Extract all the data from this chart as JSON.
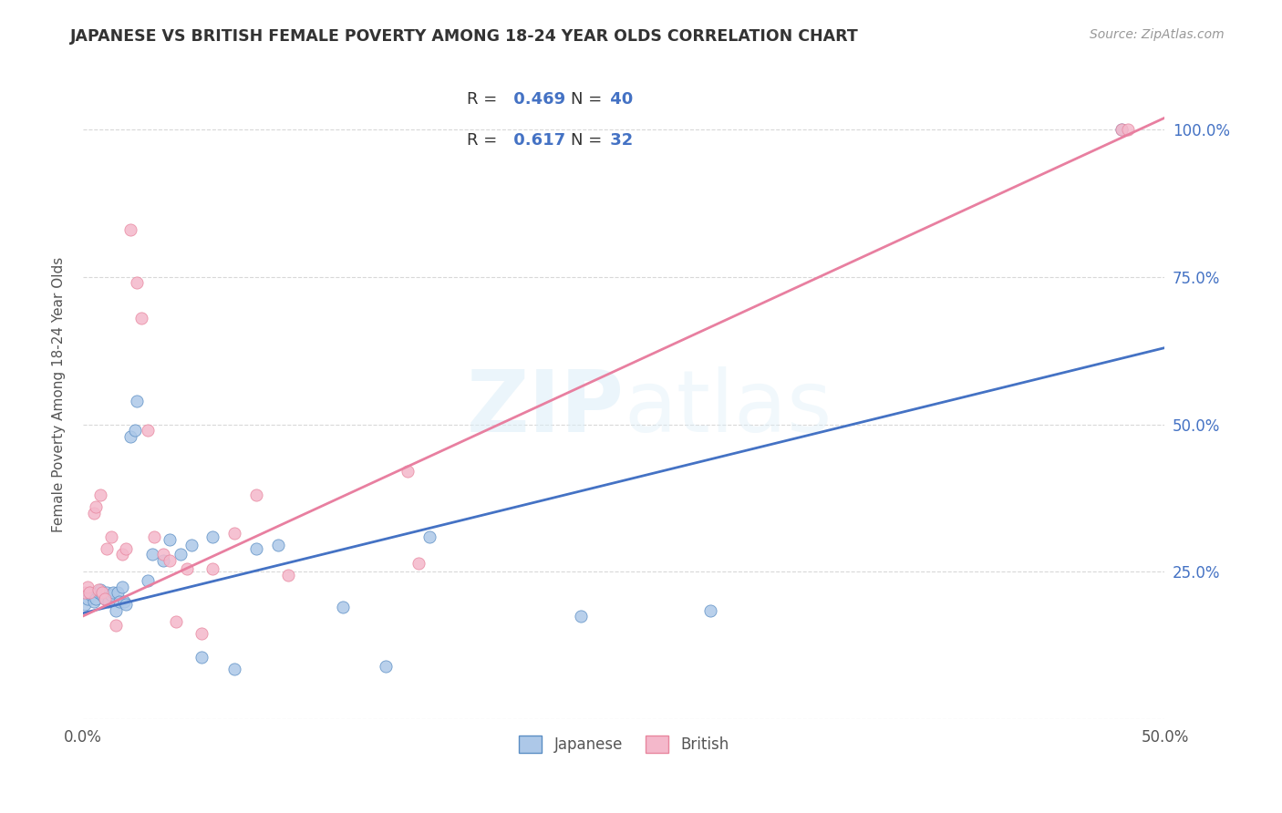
{
  "title": "JAPANESE VS BRITISH FEMALE POVERTY AMONG 18-24 YEAR OLDS CORRELATION CHART",
  "source": "Source: ZipAtlas.com",
  "ylabel": "Female Poverty Among 18-24 Year Olds",
  "xlim": [
    0.0,
    0.5
  ],
  "ylim": [
    0.0,
    1.1
  ],
  "xticks": [
    0.0,
    0.1,
    0.2,
    0.3,
    0.4,
    0.5
  ],
  "yticks": [
    0.0,
    0.25,
    0.5,
    0.75,
    1.0
  ],
  "ytick_labels_right": [
    "",
    "25.0%",
    "50.0%",
    "75.0%",
    "100.0%"
  ],
  "xtick_labels": [
    "0.0%",
    "",
    "",
    "",
    "",
    "50.0%"
  ],
  "background_color": "#ffffff",
  "grid_color": "#d8d8d8",
  "japanese_fill_color": "#adc8e8",
  "british_fill_color": "#f4b8cb",
  "japanese_edge_color": "#5b8ec4",
  "british_edge_color": "#e8869e",
  "japanese_line_color": "#4472c4",
  "british_line_color": "#e87fa0",
  "accent_color": "#4472c4",
  "legend_R_japanese": "0.469",
  "legend_N_japanese": "40",
  "legend_R_british": "0.617",
  "legend_N_british": "32",
  "japanese_x": [
    0.001,
    0.002,
    0.003,
    0.004,
    0.005,
    0.006,
    0.007,
    0.008,
    0.009,
    0.01,
    0.011,
    0.012,
    0.013,
    0.014,
    0.015,
    0.016,
    0.017,
    0.018,
    0.019,
    0.02,
    0.022,
    0.024,
    0.025,
    0.03,
    0.032,
    0.037,
    0.04,
    0.045,
    0.05,
    0.055,
    0.06,
    0.07,
    0.08,
    0.09,
    0.12,
    0.14,
    0.16,
    0.23,
    0.29,
    0.48
  ],
  "japanese_y": [
    0.195,
    0.205,
    0.215,
    0.21,
    0.2,
    0.205,
    0.215,
    0.22,
    0.21,
    0.205,
    0.215,
    0.2,
    0.21,
    0.215,
    0.185,
    0.215,
    0.2,
    0.225,
    0.2,
    0.195,
    0.48,
    0.49,
    0.54,
    0.235,
    0.28,
    0.27,
    0.305,
    0.28,
    0.295,
    0.105,
    0.31,
    0.085,
    0.29,
    0.295,
    0.19,
    0.09,
    0.31,
    0.175,
    0.185,
    1.0
  ],
  "british_x": [
    0.001,
    0.002,
    0.003,
    0.005,
    0.006,
    0.007,
    0.008,
    0.009,
    0.01,
    0.011,
    0.013,
    0.015,
    0.018,
    0.02,
    0.022,
    0.025,
    0.027,
    0.03,
    0.033,
    0.037,
    0.04,
    0.043,
    0.048,
    0.055,
    0.06,
    0.07,
    0.08,
    0.095,
    0.15,
    0.155,
    0.48,
    0.483
  ],
  "british_y": [
    0.215,
    0.225,
    0.215,
    0.35,
    0.36,
    0.22,
    0.38,
    0.215,
    0.205,
    0.29,
    0.31,
    0.16,
    0.28,
    0.29,
    0.83,
    0.74,
    0.68,
    0.49,
    0.31,
    0.28,
    0.27,
    0.165,
    0.255,
    0.145,
    0.255,
    0.315,
    0.38,
    0.245,
    0.42,
    0.265,
    1.0,
    1.0
  ],
  "regression_japanese": [
    0.18,
    0.63
  ],
  "regression_british": [
    0.175,
    1.02
  ]
}
